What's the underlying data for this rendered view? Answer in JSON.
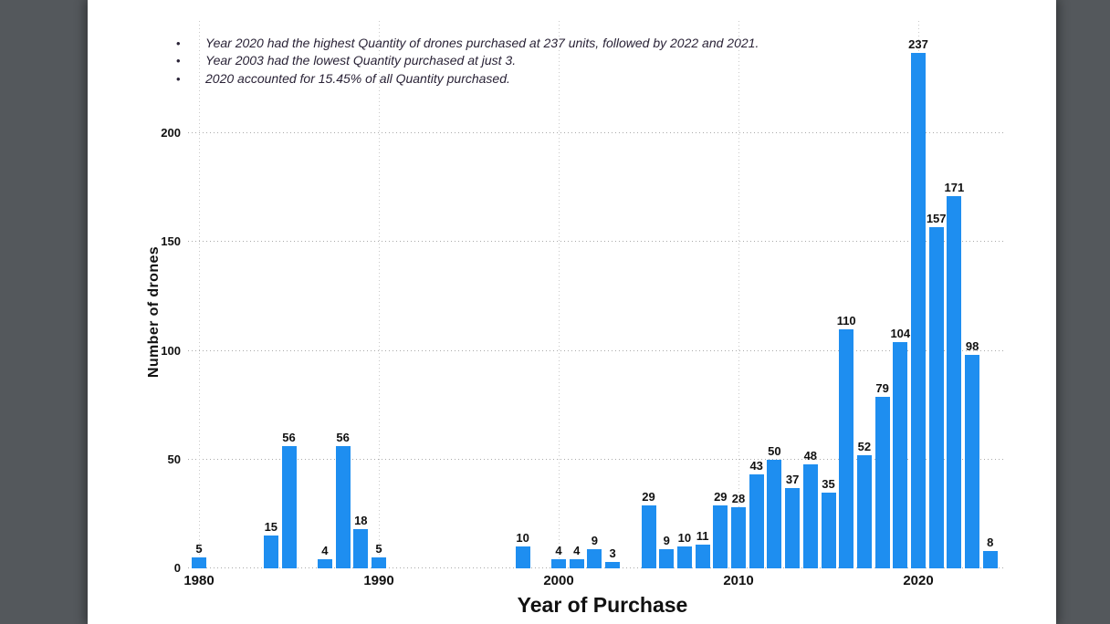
{
  "viewer": {
    "background_color": "#54585c",
    "page_color": "#ffffff"
  },
  "annotations": {
    "text_color": "#2a2337",
    "bullets": [
      "Year 2020 had the highest Quantity of drones purchased at 237 units, followed by 2022 and 2021.",
      "Year 2003 had the lowest Quantity purchased at just 3.",
      "2020 accounted for 15.45% of all Quantity purchased."
    ]
  },
  "chart_data": {
    "type": "bar",
    "title": "",
    "xlabel": "Year of Purchase",
    "ylabel": "Number of drones",
    "x": [
      1980,
      1984,
      1985,
      1987,
      1988,
      1989,
      1990,
      1998,
      2000,
      2001,
      2002,
      2003,
      2005,
      2006,
      2007,
      2008,
      2009,
      2010,
      2011,
      2012,
      2013,
      2014,
      2015,
      2016,
      2017,
      2018,
      2019,
      2020,
      2021,
      2022,
      2023,
      2024
    ],
    "values": [
      5,
      15,
      56,
      4,
      56,
      18,
      5,
      10,
      4,
      4,
      9,
      3,
      29,
      9,
      10,
      11,
      29,
      28,
      43,
      50,
      37,
      48,
      35,
      110,
      52,
      79,
      104,
      237,
      157,
      171,
      98,
      8
    ],
    "xticks": [
      1980,
      1990,
      2000,
      2010,
      2020
    ],
    "yticks": [
      0,
      50,
      100,
      150,
      200
    ],
    "ylim": [
      0,
      250
    ],
    "xlim": [
      1979.4,
      2024.8
    ],
    "grid": "dotted",
    "legend": "none",
    "value_labels": true,
    "bar_color": "#1e8ef0",
    "tick_label_color": "#111111"
  }
}
